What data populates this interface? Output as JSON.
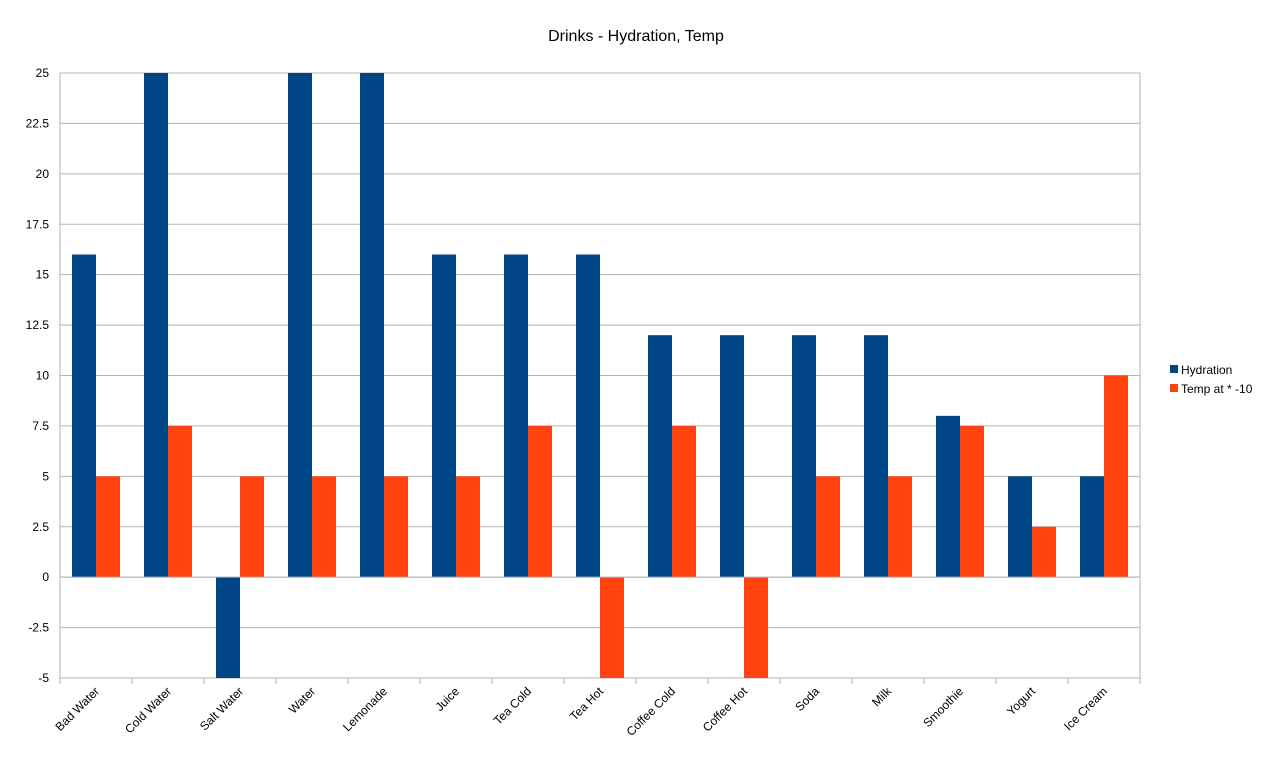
{
  "chart_data": {
    "type": "bar",
    "title": "Drinks - Hydration, Temp",
    "xlabel": "",
    "ylabel": "",
    "categories": [
      "Bad Water",
      "Cold Water",
      "Salt Water",
      "Water",
      "Lemonade",
      "Juice",
      "Tea Cold",
      "Tea Hot",
      "Coffee Cold",
      "Coffee Hot",
      "Soda",
      "Milk",
      "Smoothie",
      "Yogurt",
      "Ice Cream"
    ],
    "series": [
      {
        "name": "Hydration",
        "color": "#004586",
        "values": [
          16,
          25,
          -5,
          25,
          25,
          16,
          16,
          16,
          12,
          12,
          12,
          12,
          8,
          5,
          5
        ]
      },
      {
        "name": "Temp at * -10",
        "color": "#ff420e",
        "values": [
          5,
          7.5,
          5,
          5,
          5,
          5,
          7.5,
          -5,
          7.5,
          -5,
          5,
          5,
          7.5,
          2.5,
          10
        ]
      }
    ],
    "ylim": [
      -5,
      25
    ],
    "yticks": [
      "25",
      "22.5",
      "20",
      "17.5",
      "15",
      "12.5",
      "10",
      "7.5",
      "5",
      "2.5",
      "0",
      "-2.5",
      "-5"
    ],
    "grid": true,
    "legend_position": "right"
  }
}
